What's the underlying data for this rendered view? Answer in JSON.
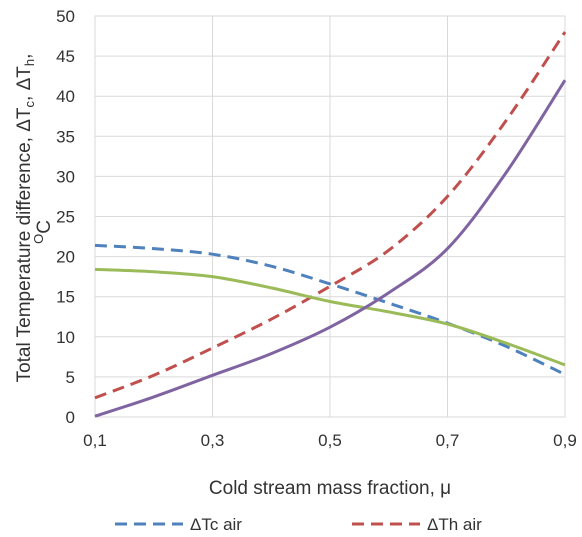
{
  "chart_data": {
    "type": "line",
    "xlabel": "Cold stream mass fraction, μ",
    "ylabel": {
      "main": "Total Temperature difference, ΔT",
      "sub_c": "c",
      "sep": ", ΔT",
      "sub_h": "h",
      "end": ",",
      "unit_sup": "O",
      "unit": "C"
    },
    "xlim": [
      0.1,
      0.9
    ],
    "ylim": [
      0,
      50
    ],
    "x_ticks": [
      0.1,
      0.3,
      0.5,
      0.7,
      0.9
    ],
    "x_tick_labels": [
      "0,1",
      "0,3",
      "0,5",
      "0,7",
      "0,9"
    ],
    "y_ticks": [
      0,
      5,
      10,
      15,
      20,
      25,
      30,
      35,
      40,
      45,
      50
    ],
    "grid": true,
    "legend_position": "bottom",
    "series": [
      {
        "name": "ΔTc air",
        "color": "#4f81bd",
        "dash": true,
        "in_legend": true,
        "x": [
          0.1,
          0.2,
          0.3,
          0.4,
          0.5,
          0.6,
          0.7,
          0.8,
          0.9
        ],
        "y": [
          21.4,
          21.0,
          20.3,
          18.8,
          16.6,
          14.2,
          11.7,
          8.8,
          5.3
        ]
      },
      {
        "name": "ΔTh air",
        "color": "#c0504d",
        "dash": true,
        "in_legend": true,
        "x": [
          0.1,
          0.2,
          0.3,
          0.4,
          0.5,
          0.6,
          0.7,
          0.8,
          0.9
        ],
        "y": [
          2.4,
          5.2,
          8.6,
          12.2,
          16.3,
          20.8,
          27.5,
          37.0,
          48.0
        ]
      },
      {
        "color": "#9bbb59",
        "dash": false,
        "in_legend": false,
        "x": [
          0.1,
          0.2,
          0.3,
          0.4,
          0.5,
          0.6,
          0.7,
          0.8,
          0.9
        ],
        "y": [
          18.4,
          18.1,
          17.5,
          16.1,
          14.4,
          13.1,
          11.6,
          9.2,
          6.5
        ]
      },
      {
        "color": "#8064a2",
        "dash": false,
        "in_legend": false,
        "x": [
          0.1,
          0.2,
          0.3,
          0.4,
          0.5,
          0.6,
          0.7,
          0.8,
          0.9
        ],
        "y": [
          0.1,
          2.5,
          5.2,
          7.9,
          11.2,
          15.5,
          21.0,
          30.5,
          42.0
        ]
      }
    ]
  }
}
